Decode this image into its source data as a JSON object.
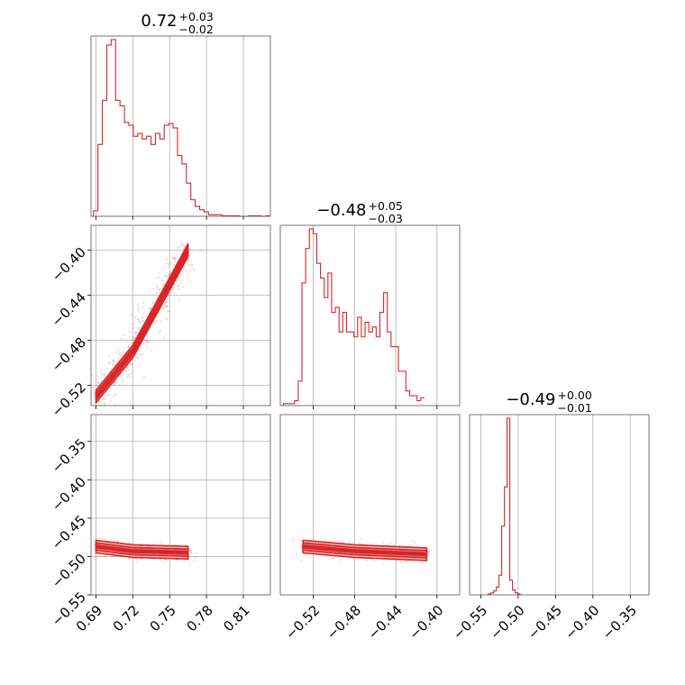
{
  "figure_type": "corner plot",
  "colors": {
    "accent": "#d62728",
    "fill_light": "#f4b6b6",
    "fill_mid": "#e88080",
    "grid": "#b0b0b0",
    "frame": "#555555"
  },
  "chart_data": [
    {
      "type": "histogram",
      "panel": "row1-col1",
      "title": "0.72",
      "title_plus": "+0.03",
      "title_minus": "−0.02",
      "xlim": [
        0.686,
        0.832
      ],
      "xticks": [
        0.69,
        0.72,
        0.75,
        0.78,
        0.81
      ],
      "bin_edges_start": 0.688,
      "bin_width": 0.0036,
      "counts": [
        10,
        130,
        210,
        310,
        320,
        210,
        200,
        170,
        165,
        145,
        150,
        140,
        145,
        130,
        150,
        140,
        165,
        168,
        160,
        110,
        95,
        60,
        30,
        18,
        12,
        8,
        3,
        3,
        3,
        1,
        1,
        1,
        1,
        0,
        0,
        1,
        1,
        1,
        0,
        1
      ],
      "grid": true
    },
    {
      "type": "histogram",
      "panel": "row2-col2",
      "title": "−0.48",
      "title_plus": "+0.05",
      "title_minus": "−0.03",
      "xlim": [
        -0.552,
        -0.378
      ],
      "xticks": [
        -0.52,
        -0.48,
        -0.44,
        -0.4
      ],
      "xticklabels": [
        "−0.52",
        "−0.48",
        "−0.44",
        "−0.40"
      ],
      "bin_edges_start": -0.549,
      "bin_width": 0.0036,
      "counts": [
        2,
        2,
        2,
        5,
        25,
        125,
        160,
        180,
        175,
        145,
        130,
        110,
        135,
        95,
        100,
        75,
        95,
        75,
        75,
        70,
        90,
        70,
        85,
        75,
        80,
        70,
        95,
        115,
        75,
        60,
        60,
        35,
        35,
        15,
        10,
        10,
        5,
        8
      ],
      "grid": true
    },
    {
      "type": "histogram",
      "panel": "row3-col3",
      "title": "−0.49",
      "title_plus": "+0.00",
      "title_minus": "−0.01",
      "xlim": [
        -0.565,
        -0.325
      ],
      "xticks": [
        -0.55,
        -0.5,
        -0.45,
        -0.4,
        -0.35
      ],
      "xticklabels": [
        "−0.55",
        "−0.50",
        "−0.45",
        "−0.40",
        "−0.35"
      ],
      "bin_edges_start": -0.54,
      "bin_width": 0.0036,
      "counts": [
        1,
        2,
        4,
        8,
        20,
        70,
        110,
        180,
        15,
        5,
        2,
        1
      ],
      "grid": true
    },
    {
      "type": "scatter_contour",
      "panel": "row2-col1",
      "xlim": [
        0.686,
        0.832
      ],
      "ylim": [
        -0.538,
        -0.378
      ],
      "xticks": [
        0.69,
        0.72,
        0.75,
        0.78,
        0.81
      ],
      "yticks": [
        -0.52,
        -0.48,
        -0.44,
        -0.4
      ],
      "yticklabels": [
        "−0.52",
        "−0.48",
        "−0.44",
        "−0.40"
      ],
      "ridge": [
        [
          0.69,
          -0.53
        ],
        [
          0.72,
          -0.49
        ],
        [
          0.75,
          -0.43
        ],
        [
          0.765,
          -0.4
        ]
      ],
      "spread": 0.007,
      "grid": true
    },
    {
      "type": "scatter_contour",
      "panel": "row3-col1",
      "xlim": [
        0.686,
        0.832
      ],
      "ylim": [
        -0.55,
        -0.315
      ],
      "xticks": [
        0.69,
        0.72,
        0.75,
        0.78,
        0.81
      ],
      "xticklabels": [
        "0.69",
        "0.72",
        "0.75",
        "0.78",
        "0.81"
      ],
      "yticks": [
        -0.55,
        -0.5,
        -0.45,
        -0.4,
        -0.35
      ],
      "yticklabels": [
        "−0.55",
        "−0.50",
        "−0.45",
        "−0.40",
        "−0.35"
      ],
      "ridge": [
        [
          0.69,
          -0.487
        ],
        [
          0.72,
          -0.493
        ],
        [
          0.765,
          -0.495
        ]
      ],
      "spread": 0.005,
      "grid": true
    },
    {
      "type": "scatter_contour",
      "panel": "row3-col2",
      "xlim": [
        -0.552,
        -0.378
      ],
      "ylim": [
        -0.55,
        -0.315
      ],
      "xticks": [
        -0.52,
        -0.48,
        -0.44,
        -0.4
      ],
      "xticklabels": [
        "−0.52",
        "−0.48",
        "−0.44",
        "−0.40"
      ],
      "ridge": [
        [
          -0.53,
          -0.487
        ],
        [
          -0.48,
          -0.493
        ],
        [
          -0.41,
          -0.497
        ]
      ],
      "spread": 0.005,
      "grid": true
    }
  ]
}
